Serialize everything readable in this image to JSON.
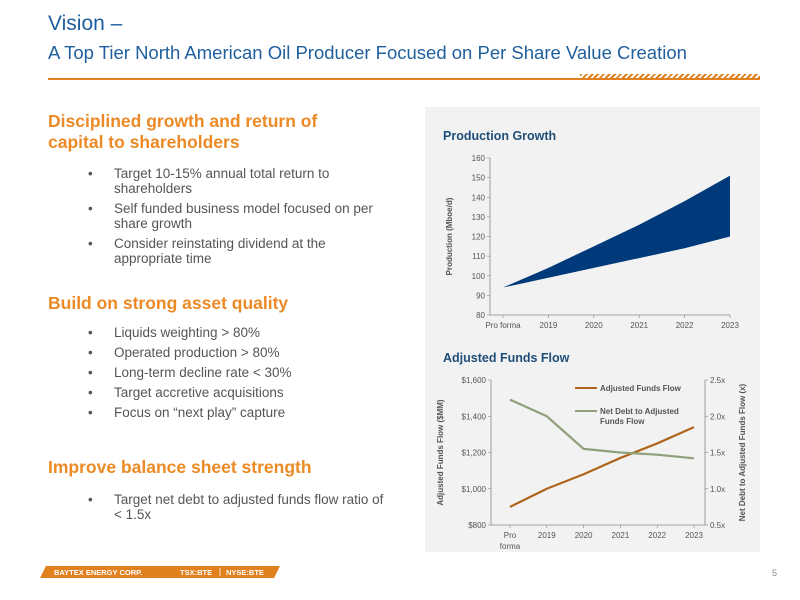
{
  "header": {
    "title_line1": "Vision –",
    "title_line2": "A Top Tier North American Oil Producer Focused on Per Share Value Creation"
  },
  "sections": [
    {
      "heading_line1": "Disciplined growth and return of",
      "heading_line2": "capital to shareholders",
      "bullets": [
        "Target 10-15% annual total return to shareholders",
        "Self funded business model focused on per share growth",
        "Consider reinstating dividend at the appropriate time"
      ]
    },
    {
      "heading_line1": "Build on strong asset quality",
      "bullets": [
        "Liquids weighting > 80%",
        "Operated production > 80%",
        "Long-term decline rate < 30%",
        "Target accretive acquisitions",
        "Focus on “next play” capture"
      ]
    },
    {
      "heading_line1": "Improve balance sheet strength",
      "bullets": [
        "Target net debt to adjusted funds flow ratio of < 1.5x"
      ]
    }
  ],
  "footer": {
    "company": "BAYTEX ENERGY CORP.",
    "tsx": "TSX:BTE",
    "nyse": "NYSE:BTE",
    "page_number": "5"
  },
  "colors": {
    "title_blue": "#1f5f9e",
    "orange": "#ec8a25",
    "navy": "#003a7a",
    "brown": "#b0651b",
    "sage": "#8fa07a"
  },
  "chart_data": [
    {
      "type": "area",
      "title": "Production Growth",
      "ylabel": "Production (Mboe/d)",
      "categories": [
        "Pro forma",
        "2019",
        "2020",
        "2021",
        "2022",
        "2023"
      ],
      "y_ticks": [
        "80",
        "90",
        "100",
        "110",
        "120",
        "130",
        "140",
        "150",
        "160"
      ],
      "ylim": [
        80,
        160
      ],
      "series": [
        {
          "values": [
            94,
            99,
            104,
            109,
            114,
            120
          ]
        },
        {
          "values": [
            94,
            104,
            115,
            126,
            138,
            151
          ]
        }
      ],
      "grid": false
    },
    {
      "type": "line",
      "title": "Adjusted Funds Flow",
      "ylabel": "Adjusted Funds Flow ($MM)",
      "y2label": "Net Debt to Adjusted Funds Flow (x)",
      "categories": [
        "Pro forma",
        "2019",
        "2020",
        "2021",
        "2022",
        "2023"
      ],
      "y_ticks": [
        "$800",
        "$1,000",
        "$1,200",
        "$1,400",
        "$1,600"
      ],
      "y2_ticks": [
        "0.5x",
        "1.0x",
        "1.5x",
        "2.0x",
        "2.5x"
      ],
      "ylim": [
        800,
        1600
      ],
      "y2lim": [
        0.5,
        2.5
      ],
      "series": [
        {
          "name": "Adjusted Funds Flow",
          "axis": "left",
          "values": [
            900,
            1000,
            1080,
            1170,
            1250,
            1340
          ]
        },
        {
          "name": "Net Debt to Adjusted Funds Flow",
          "axis": "right",
          "values": [
            2.23,
            2.0,
            1.55,
            1.5,
            1.47,
            1.42
          ]
        }
      ],
      "legend": [
        "Adjusted Funds Flow",
        "Net Debt to Adjusted Funds Flow"
      ],
      "legend_position": "top-right"
    }
  ]
}
